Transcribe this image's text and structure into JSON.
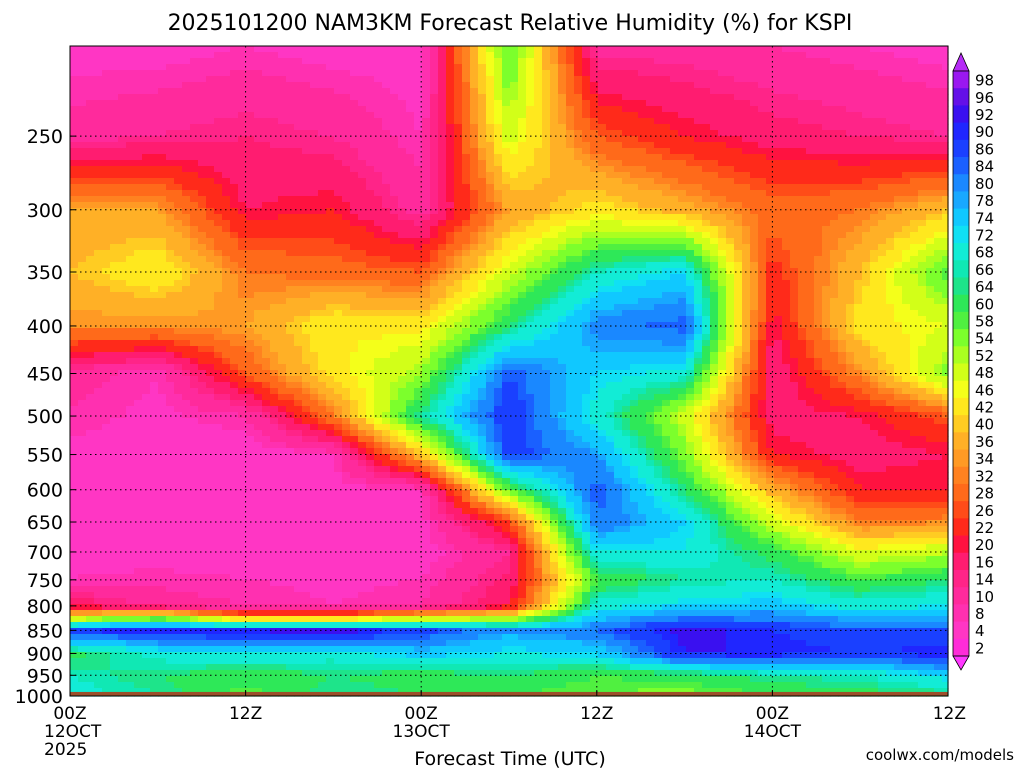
{
  "chart_data": {
    "type": "heatmap",
    "title": "2025101200 NAM3KM Forecast Relative Humidity (%) for KSPI",
    "xlabel": "Forecast Time (UTC)",
    "ylabel": "",
    "x_ticks": [
      {
        "hour": 0,
        "labels": [
          "00Z",
          "12OCT",
          "2025"
        ]
      },
      {
        "hour": 12,
        "labels": [
          "12Z"
        ]
      },
      {
        "hour": 24,
        "labels": [
          "00Z",
          "13OCT"
        ]
      },
      {
        "hour": 36,
        "labels": [
          "12Z"
        ]
      },
      {
        "hour": 48,
        "labels": [
          "00Z",
          "14OCT"
        ]
      },
      {
        "hour": 60,
        "labels": [
          "12Z"
        ]
      }
    ],
    "xlim": [
      0,
      60
    ],
    "y_ticks": [
      250,
      300,
      350,
      400,
      450,
      500,
      550,
      600,
      650,
      700,
      750,
      800,
      850,
      900,
      950,
      1000
    ],
    "ylim_hpa": [
      1000,
      200
    ],
    "y_log_pressure": true,
    "ground_pressure_hpa": 990,
    "ground_color": "#9c4f2a",
    "colorbar": {
      "labels": [
        2,
        4,
        8,
        10,
        14,
        16,
        20,
        22,
        26,
        28,
        32,
        34,
        36,
        40,
        42,
        46,
        48,
        52,
        54,
        58,
        60,
        64,
        66,
        68,
        72,
        74,
        78,
        80,
        84,
        86,
        90,
        92,
        96,
        98
      ],
      "colors": [
        "#ff2cd8",
        "#ff36c4",
        "#ff30b0",
        "#ff2a9c",
        "#ff2488",
        "#ff1c70",
        "#ff1240",
        "#ff2a1a",
        "#ff4c18",
        "#ff6a1a",
        "#ff8220",
        "#ff9a24",
        "#ffb026",
        "#ffcc22",
        "#ffe81e",
        "#f4ff1a",
        "#d2ff18",
        "#aaff20",
        "#7cff2c",
        "#50f040",
        "#2ee858",
        "#1ee48a",
        "#10e8b4",
        "#12ecd6",
        "#10e0f4",
        "#10c8ff",
        "#18a8ff",
        "#1a88ff",
        "#1a60ff",
        "#1a40ff",
        "#2026ff",
        "#3a10f0",
        "#6410e8",
        "#9a18f0"
      ],
      "max_color": "#b62cf6",
      "min_color": "#ff38ff"
    },
    "rh_profiles": [
      {
        "hour": 0,
        "levels": [
          [
            1000,
            70
          ],
          [
            950,
            68
          ],
          [
            900,
            62
          ],
          [
            850,
            90
          ],
          [
            820,
            40
          ],
          [
            800,
            20
          ],
          [
            750,
            8
          ],
          [
            600,
            5
          ],
          [
            450,
            12
          ],
          [
            400,
            34
          ],
          [
            350,
            40
          ],
          [
            300,
            36
          ],
          [
            250,
            12
          ],
          [
            200,
            6
          ]
        ]
      },
      {
        "hour": 6,
        "levels": [
          [
            1000,
            66
          ],
          [
            950,
            64
          ],
          [
            900,
            70
          ],
          [
            850,
            92
          ],
          [
            820,
            50
          ],
          [
            800,
            12
          ],
          [
            700,
            6
          ],
          [
            550,
            6
          ],
          [
            450,
            8
          ],
          [
            400,
            34
          ],
          [
            350,
            46
          ],
          [
            300,
            36
          ],
          [
            250,
            14
          ],
          [
            200,
            6
          ]
        ]
      },
      {
        "hour": 12,
        "levels": [
          [
            1000,
            58
          ],
          [
            950,
            62
          ],
          [
            900,
            72
          ],
          [
            850,
            92
          ],
          [
            820,
            30
          ],
          [
            800,
            10
          ],
          [
            700,
            6
          ],
          [
            550,
            5
          ],
          [
            500,
            10
          ],
          [
            450,
            28
          ],
          [
            400,
            36
          ],
          [
            350,
            32
          ],
          [
            300,
            20
          ],
          [
            250,
            16
          ],
          [
            200,
            8
          ]
        ]
      },
      {
        "hour": 18,
        "levels": [
          [
            1000,
            66
          ],
          [
            950,
            64
          ],
          [
            900,
            70
          ],
          [
            850,
            94
          ],
          [
            820,
            30
          ],
          [
            800,
            8
          ],
          [
            650,
            5
          ],
          [
            550,
            8
          ],
          [
            500,
            32
          ],
          [
            450,
            44
          ],
          [
            400,
            46
          ],
          [
            350,
            30
          ],
          [
            300,
            22
          ],
          [
            250,
            14
          ],
          [
            200,
            6
          ]
        ]
      },
      {
        "hour": 24,
        "levels": [
          [
            1000,
            64
          ],
          [
            950,
            62
          ],
          [
            900,
            76
          ],
          [
            850,
            88
          ],
          [
            800,
            10
          ],
          [
            700,
            6
          ],
          [
            600,
            8
          ],
          [
            550,
            40
          ],
          [
            500,
            66
          ],
          [
            450,
            54
          ],
          [
            400,
            44
          ],
          [
            350,
            28
          ],
          [
            300,
            12
          ],
          [
            250,
            8
          ],
          [
            200,
            6
          ]
        ]
      },
      {
        "hour": 30,
        "levels": [
          [
            1000,
            60
          ],
          [
            950,
            64
          ],
          [
            900,
            72
          ],
          [
            850,
            80
          ],
          [
            800,
            20
          ],
          [
            700,
            14
          ],
          [
            650,
            26
          ],
          [
            600,
            58
          ],
          [
            550,
            88
          ],
          [
            500,
            90
          ],
          [
            450,
            86
          ],
          [
            400,
            64
          ],
          [
            350,
            50
          ],
          [
            300,
            36
          ],
          [
            250,
            50
          ],
          [
            200,
            60
          ]
        ]
      },
      {
        "hour": 36,
        "levels": [
          [
            1000,
            58
          ],
          [
            950,
            60
          ],
          [
            900,
            74
          ],
          [
            850,
            84
          ],
          [
            800,
            70
          ],
          [
            750,
            60
          ],
          [
            700,
            72
          ],
          [
            650,
            84
          ],
          [
            600,
            86
          ],
          [
            550,
            80
          ],
          [
            500,
            70
          ],
          [
            450,
            74
          ],
          [
            400,
            82
          ],
          [
            350,
            68
          ],
          [
            300,
            44
          ],
          [
            250,
            28
          ],
          [
            200,
            12
          ]
        ]
      },
      {
        "hour": 42,
        "levels": [
          [
            1000,
            56
          ],
          [
            950,
            62
          ],
          [
            900,
            92
          ],
          [
            850,
            94
          ],
          [
            800,
            74
          ],
          [
            750,
            66
          ],
          [
            700,
            72
          ],
          [
            650,
            74
          ],
          [
            600,
            64
          ],
          [
            550,
            56
          ],
          [
            500,
            50
          ],
          [
            450,
            70
          ],
          [
            400,
            86
          ],
          [
            350,
            74
          ],
          [
            300,
            38
          ],
          [
            250,
            22
          ],
          [
            200,
            12
          ]
        ]
      },
      {
        "hour": 48,
        "levels": [
          [
            1000,
            60
          ],
          [
            950,
            66
          ],
          [
            900,
            92
          ],
          [
            850,
            90
          ],
          [
            800,
            76
          ],
          [
            750,
            68
          ],
          [
            700,
            62
          ],
          [
            650,
            50
          ],
          [
            600,
            38
          ],
          [
            550,
            22
          ],
          [
            500,
            18
          ],
          [
            450,
            16
          ],
          [
            400,
            20
          ],
          [
            350,
            24
          ],
          [
            300,
            30
          ],
          [
            250,
            18
          ],
          [
            200,
            10
          ]
        ]
      },
      {
        "hour": 54,
        "levels": [
          [
            1000,
            62
          ],
          [
            950,
            68
          ],
          [
            900,
            90
          ],
          [
            850,
            86
          ],
          [
            800,
            70
          ],
          [
            750,
            60
          ],
          [
            700,
            48
          ],
          [
            650,
            32
          ],
          [
            600,
            22
          ],
          [
            550,
            18
          ],
          [
            500,
            20
          ],
          [
            450,
            34
          ],
          [
            400,
            44
          ],
          [
            350,
            40
          ],
          [
            300,
            32
          ],
          [
            250,
            16
          ],
          [
            200,
            8
          ]
        ]
      },
      {
        "hour": 60,
        "levels": [
          [
            1000,
            64
          ],
          [
            950,
            74
          ],
          [
            900,
            92
          ],
          [
            850,
            86
          ],
          [
            800,
            72
          ],
          [
            750,
            64
          ],
          [
            700,
            52
          ],
          [
            650,
            34
          ],
          [
            600,
            22
          ],
          [
            550,
            20
          ],
          [
            500,
            28
          ],
          [
            450,
            56
          ],
          [
            400,
            48
          ],
          [
            350,
            60
          ],
          [
            300,
            40
          ],
          [
            250,
            14
          ],
          [
            200,
            6
          ]
        ]
      }
    ],
    "grid": true,
    "legend": "right"
  },
  "watermark": "coolwx.com/models",
  "watermark_color": "#e02020"
}
